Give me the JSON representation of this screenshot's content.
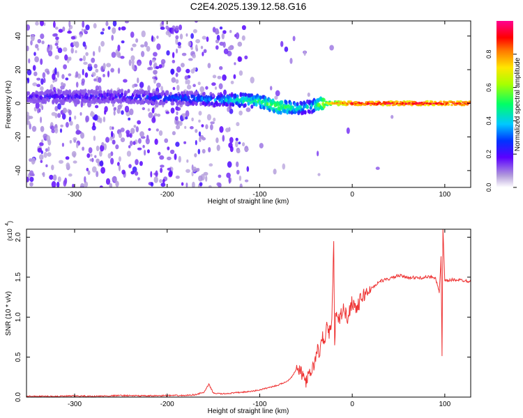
{
  "title": "C2E4.2025.139.12.58.G16",
  "chart_data": [
    {
      "type": "heatmap",
      "xlabel": "Height of straight line (km)",
      "ylabel": "Frequency (Hz)",
      "xlim": [
        -352,
        128
      ],
      "ylim": [
        -50,
        49
      ],
      "xticks": [
        "-300",
        "-200",
        "-100",
        "0",
        "100"
      ],
      "yticks": [
        "40",
        "20",
        "0",
        "-20",
        "-40"
      ],
      "xtick_values": [
        -300,
        -200,
        -100,
        0,
        100
      ],
      "ytick_values": [
        40,
        20,
        0,
        -20,
        -40
      ],
      "colorbar": {
        "label": "Normalized spectral amplitude",
        "range": [
          0.0,
          1.0
        ],
        "ticks": [
          "0.0",
          "0.2",
          "0.4",
          "0.6",
          "0.8"
        ],
        "tick_values": [
          0.0,
          0.2,
          0.4,
          0.6,
          0.8
        ]
      },
      "ridge": [
        {
          "x": -350,
          "y": 4,
          "amp": 0.22
        },
        {
          "x": -300,
          "y": 4,
          "amp": 0.22
        },
        {
          "x": -250,
          "y": 4,
          "amp": 0.25
        },
        {
          "x": -180,
          "y": 3,
          "amp": 0.32
        },
        {
          "x": -150,
          "y": 2,
          "amp": 0.35
        },
        {
          "x": -120,
          "y": 2,
          "amp": 0.45
        },
        {
          "x": -100,
          "y": 1,
          "amp": 0.5
        },
        {
          "x": -80,
          "y": -2,
          "amp": 0.6
        },
        {
          "x": -60,
          "y": -3,
          "amp": 0.45
        },
        {
          "x": -45,
          "y": -2,
          "amp": 0.4
        },
        {
          "x": -30,
          "y": 0,
          "amp": 0.7
        },
        {
          "x": 0,
          "y": 0,
          "amp": 0.95
        },
        {
          "x": 128,
          "y": 0,
          "amp": 0.95
        }
      ]
    },
    {
      "type": "line",
      "xlabel": "Height of straight line (km)",
      "ylabel": "SNR (10 * v/v)",
      "yscale_label": "(x10",
      "yscale_exp": "4",
      "xlim": [
        -352,
        128
      ],
      "ylim": [
        0,
        2.1
      ],
      "xticks": [
        "-300",
        "-200",
        "-100",
        "0",
        "100"
      ],
      "yticks": [
        "0.0",
        "0.5",
        "1.0",
        "1.5",
        "2.0"
      ],
      "xtick_values": [
        -300,
        -200,
        -100,
        0,
        100
      ],
      "ytick_values": [
        0.0,
        0.5,
        1.0,
        1.5,
        2.0
      ],
      "series": [
        {
          "color": "#ee3333",
          "x": [
            -352,
            -320,
            -300,
            -280,
            -250,
            -220,
            -200,
            -180,
            -170,
            -160,
            -155,
            -150,
            -140,
            -130,
            -120,
            -110,
            -100,
            -90,
            -80,
            -70,
            -65,
            -60,
            -55,
            -50,
            -45,
            -40,
            -38,
            -35,
            -32,
            -30,
            -28,
            -25,
            -22,
            -20,
            -19,
            -18,
            -15,
            -10,
            -5,
            0,
            5,
            10,
            15,
            20,
            30,
            40,
            50,
            60,
            70,
            80,
            90,
            94,
            96,
            97,
            98,
            100,
            110,
            120,
            128
          ],
          "y": [
            0.01,
            0.01,
            0.015,
            0.01,
            0.02,
            0.015,
            0.02,
            0.02,
            0.03,
            0.06,
            0.16,
            0.05,
            0.04,
            0.05,
            0.06,
            0.07,
            0.09,
            0.12,
            0.15,
            0.2,
            0.26,
            0.36,
            0.3,
            0.2,
            0.3,
            0.45,
            0.6,
            0.55,
            0.75,
            0.65,
            0.9,
            0.8,
            0.95,
            1.9,
            0.7,
            1.0,
            0.95,
            1.1,
            1.0,
            1.2,
            1.1,
            1.25,
            1.3,
            1.35,
            1.45,
            1.48,
            1.52,
            1.5,
            1.49,
            1.5,
            1.5,
            1.3,
            1.75,
            0.5,
            2.1,
            1.45,
            1.47,
            1.46,
            1.45
          ]
        }
      ]
    }
  ]
}
